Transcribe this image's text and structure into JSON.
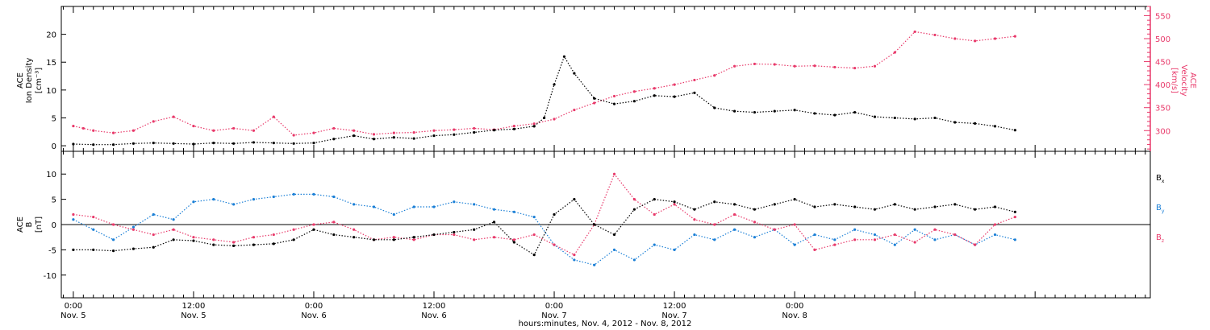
{
  "chart_data": [
    {
      "type": "scatter",
      "panel": "top",
      "ylabel_left": [
        "ACE",
        "Ion Density",
        "[cm⁻³]"
      ],
      "ylabel_right": [
        "ACE",
        "Velocity",
        "[km/s]"
      ],
      "ylim_left": [
        -1,
        25
      ],
      "ylim_right": [
        255,
        570
      ],
      "yticks_left": [
        0,
        5,
        10,
        15,
        20
      ],
      "yticks_right": [
        300,
        350,
        400,
        450,
        500,
        550
      ],
      "x_range_hours": [
        -1.2,
        107.5
      ],
      "series": [
        {
          "axis": "left",
          "color": "#000000",
          "x": [
            0,
            2,
            4,
            6,
            8,
            10,
            12,
            14,
            16,
            18,
            20,
            22,
            24,
            26,
            28,
            30,
            32,
            34,
            36,
            38,
            40,
            42,
            44,
            46,
            47,
            48,
            49,
            50,
            52,
            54,
            56,
            58,
            60,
            62,
            64,
            66,
            68,
            70,
            72,
            74,
            76,
            78,
            80,
            82,
            84,
            86,
            88,
            90,
            92,
            94
          ],
          "y": [
            0.3,
            0.2,
            0.2,
            0.4,
            0.5,
            0.4,
            0.3,
            0.5,
            0.4,
            0.6,
            0.5,
            0.4,
            0.5,
            1.2,
            1.8,
            1.2,
            1.5,
            1.3,
            1.8,
            2.0,
            2.4,
            2.8,
            3.0,
            3.5,
            5.0,
            11.0,
            16.0,
            13.0,
            8.5,
            7.5,
            8.0,
            9.0,
            8.8,
            9.5,
            6.8,
            6.2,
            6.0,
            6.2,
            6.4,
            5.8,
            5.5,
            6.0,
            5.2,
            5.0,
            4.8,
            5.0,
            4.2,
            4.0,
            3.5,
            2.8
          ]
        },
        {
          "axis": "right",
          "color": "#e8396a",
          "x": [
            0,
            1,
            2,
            4,
            6,
            8,
            10,
            12,
            14,
            16,
            18,
            20,
            22,
            24,
            26,
            28,
            30,
            32,
            34,
            36,
            38,
            40,
            42,
            44,
            46,
            48,
            50,
            52,
            54,
            56,
            58,
            60,
            62,
            64,
            66,
            68,
            70,
            72,
            74,
            76,
            78,
            80,
            82,
            84,
            86,
            88,
            90,
            92,
            94
          ],
          "y": [
            310,
            305,
            300,
            295,
            300,
            320,
            330,
            310,
            300,
            305,
            300,
            330,
            290,
            295,
            305,
            300,
            292,
            295,
            296,
            300,
            302,
            305,
            302,
            310,
            315,
            325,
            345,
            360,
            375,
            385,
            392,
            400,
            410,
            420,
            440,
            445,
            444,
            440,
            441,
            438,
            436,
            440,
            470,
            515,
            508,
            500,
            495,
            500,
            505
          ]
        }
      ]
    },
    {
      "type": "scatter",
      "panel": "bottom",
      "ylabel_left": [
        "ACE",
        "B",
        "[nT]"
      ],
      "ylim": [
        -14.5,
        14.5
      ],
      "yticks": [
        -10,
        -5,
        0,
        5,
        10
      ],
      "x_range_hours": [
        -1.2,
        107.5
      ],
      "series": [
        {
          "name": "B",
          "subscript": "x",
          "color": "#000000",
          "x": [
            0,
            2,
            4,
            6,
            8,
            10,
            12,
            14,
            16,
            18,
            20,
            22,
            24,
            26,
            28,
            30,
            32,
            34,
            36,
            38,
            40,
            42,
            44,
            46,
            48,
            50,
            52,
            54,
            56,
            58,
            60,
            62,
            64,
            66,
            68,
            70,
            72,
            74,
            76,
            78,
            80,
            82,
            84,
            86,
            88,
            90,
            92,
            94
          ],
          "y": [
            -5.0,
            -5.0,
            -5.2,
            -4.8,
            -4.5,
            -3.0,
            -3.2,
            -4.0,
            -4.2,
            -4.0,
            -3.8,
            -3.0,
            -1.0,
            -2.0,
            -2.5,
            -3.0,
            -3.0,
            -2.5,
            -2.0,
            -1.5,
            -1.0,
            0.5,
            -3.5,
            -6.0,
            2.0,
            5.0,
            0.0,
            -2.0,
            3.0,
            5.0,
            4.5,
            3.0,
            4.5,
            4.0,
            3.0,
            4.0,
            5.0,
            3.5,
            4.0,
            3.5,
            3.0,
            4.0,
            3.0,
            3.5,
            4.0,
            3.0,
            3.5,
            2.5
          ]
        },
        {
          "name": "B",
          "subscript": "y",
          "color": "#1a7fd6",
          "x": [
            0,
            2,
            4,
            6,
            8,
            10,
            12,
            14,
            16,
            18,
            20,
            22,
            24,
            26,
            28,
            30,
            32,
            34,
            36,
            38,
            40,
            42,
            44,
            46,
            48,
            50,
            52,
            54,
            56,
            58,
            60,
            62,
            64,
            66,
            68,
            70,
            72,
            74,
            76,
            78,
            80,
            82,
            84,
            86,
            88,
            90,
            92,
            94
          ],
          "y": [
            1.0,
            -1.0,
            -3.0,
            -0.5,
            2.0,
            1.0,
            4.5,
            5.0,
            4.0,
            5.0,
            5.5,
            6.0,
            6.0,
            5.5,
            4.0,
            3.5,
            2.0,
            3.5,
            3.5,
            4.5,
            4.0,
            3.0,
            2.5,
            1.5,
            -4.0,
            -7.0,
            -8.0,
            -5.0,
            -7.0,
            -4.0,
            -5.0,
            -2.0,
            -3.0,
            -1.0,
            -2.5,
            -1.0,
            -4.0,
            -2.0,
            -3.0,
            -1.0,
            -2.0,
            -4.0,
            -1.0,
            -3.0,
            -2.0,
            -4.0,
            -2.0,
            -3.0
          ]
        },
        {
          "name": "B",
          "subscript": "z",
          "color": "#e8396a",
          "x": [
            0,
            2,
            4,
            6,
            8,
            10,
            12,
            14,
            16,
            18,
            20,
            22,
            24,
            26,
            28,
            30,
            32,
            34,
            36,
            38,
            40,
            42,
            44,
            46,
            48,
            50,
            52,
            54,
            56,
            58,
            60,
            62,
            64,
            66,
            68,
            70,
            72,
            74,
            76,
            78,
            80,
            82,
            84,
            86,
            88,
            90,
            92,
            94
          ],
          "y": [
            2.0,
            1.5,
            0.0,
            -1.0,
            -2.0,
            -1.0,
            -2.5,
            -3.0,
            -3.5,
            -2.5,
            -2.0,
            -1.0,
            0.0,
            0.5,
            -1.0,
            -3.0,
            -2.5,
            -3.0,
            -2.0,
            -2.0,
            -3.0,
            -2.5,
            -3.0,
            -2.0,
            -4.0,
            -6.0,
            0.0,
            10.0,
            5.0,
            2.0,
            4.0,
            1.0,
            0.0,
            2.0,
            0.5,
            -1.0,
            0.0,
            -5.0,
            -4.0,
            -3.0,
            -3.0,
            -2.0,
            -3.5,
            -1.0,
            -2.0,
            -4.0,
            0.0,
            1.5
          ]
        }
      ]
    }
  ],
  "x_axis": {
    "ticks": [
      {
        "hour": 0,
        "time": "0:00",
        "date": "Nov. 5"
      },
      {
        "hour": 12,
        "time": "12:00",
        "date": "Nov. 5"
      },
      {
        "hour": 24,
        "time": "0:00",
        "date": "Nov. 6"
      },
      {
        "hour": 36,
        "time": "12:00",
        "date": "Nov. 6"
      },
      {
        "hour": 48,
        "time": "0:00",
        "date": "Nov. 7"
      },
      {
        "hour": 60,
        "time": "12:00",
        "date": "Nov. 7"
      },
      {
        "hour": 72,
        "time": "0:00",
        "date": "Nov. 8"
      }
    ],
    "label": "hours:minutes, Nov. 4, 2012 - Nov. 8, 2012"
  }
}
